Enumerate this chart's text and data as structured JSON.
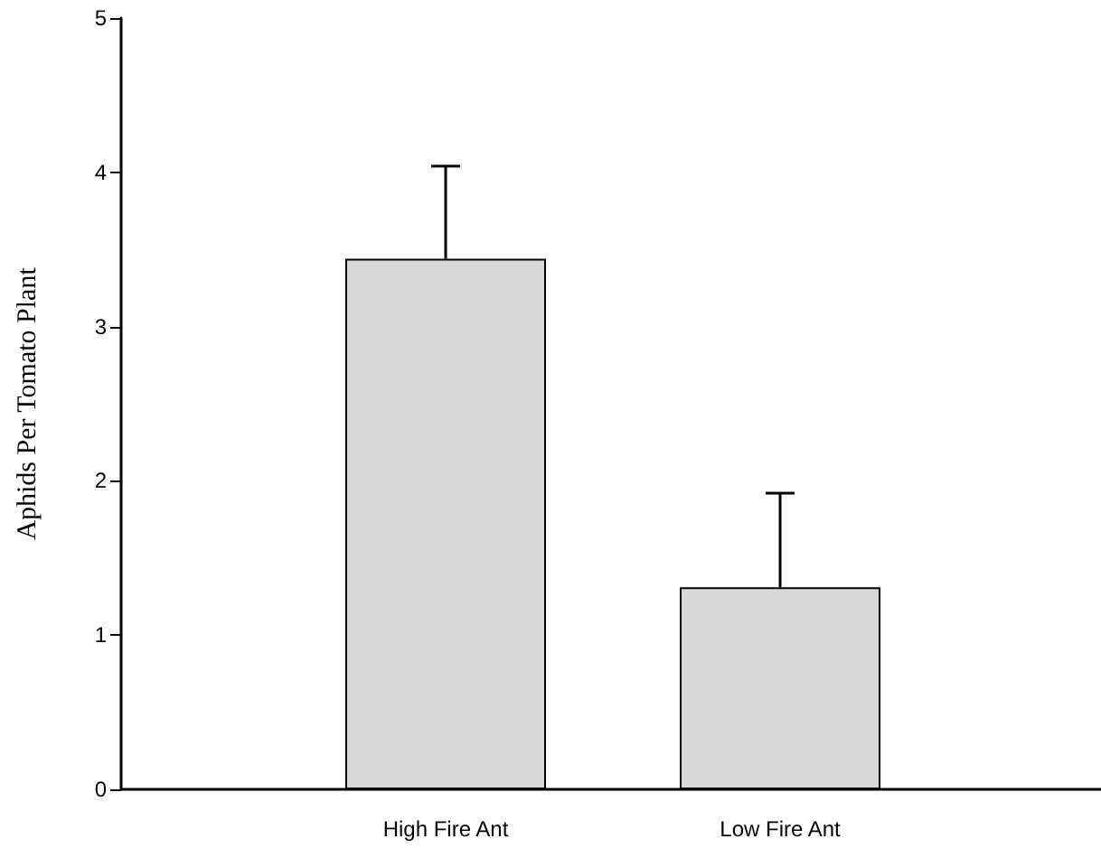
{
  "chart_data": {
    "type": "bar",
    "ylabel": "Aphids Per Tomato Plant",
    "categories": [
      "High Fire Ant",
      "Low Fire Ant"
    ],
    "values": [
      3.44,
      1.31
    ],
    "errors": [
      [
        3.44,
        4.04
      ],
      [
        1.31,
        1.92
      ]
    ],
    "color": "#d9d9d9",
    "ylim": [
      0,
      5
    ],
    "yticks": [
      0,
      1,
      2,
      3,
      4,
      5
    ],
    "grid": false
  }
}
